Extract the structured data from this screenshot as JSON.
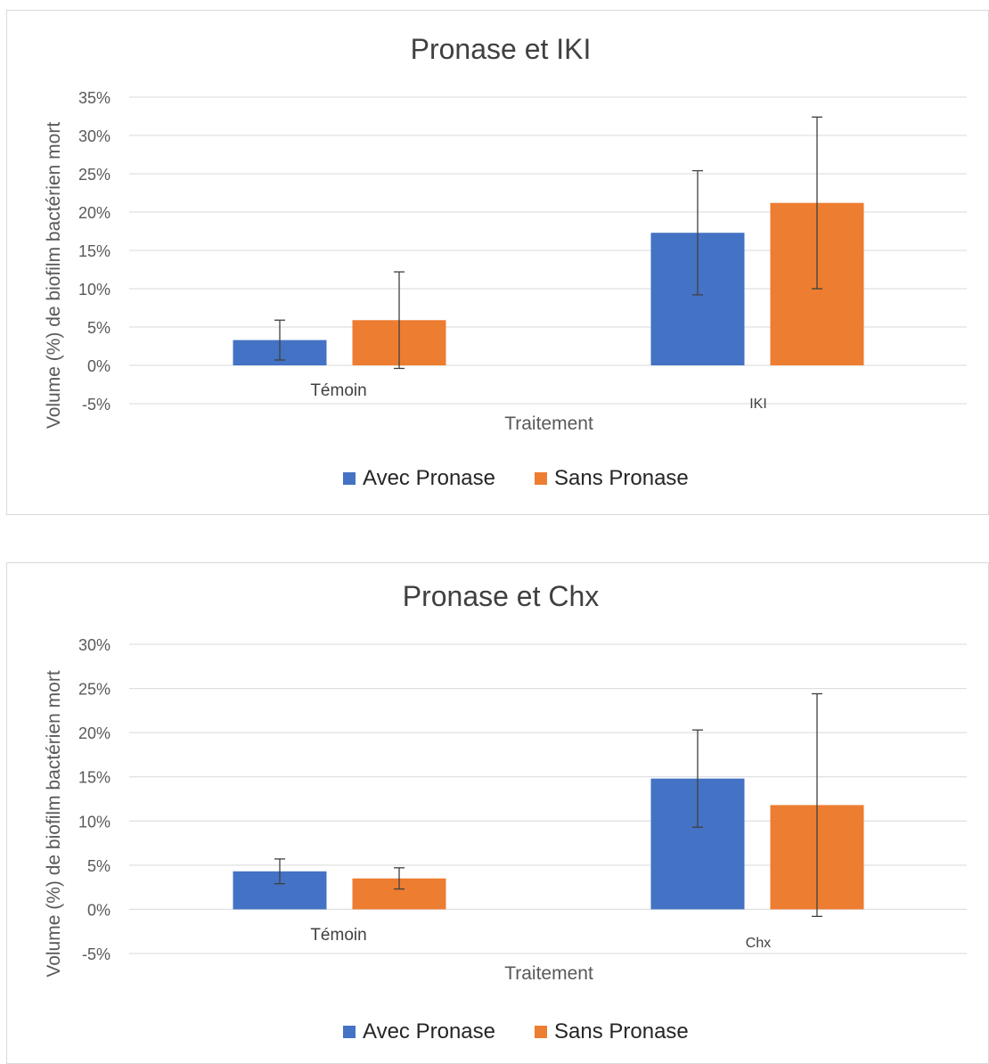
{
  "colors": {
    "series_1": "#4472c4",
    "series_2": "#ed7d31"
  },
  "chart_data": [
    {
      "type": "bar",
      "title": "Pronase et IKI",
      "xlabel": "Traitement",
      "ylabel": "Volume (%) de biofilm bactérien mort",
      "categories": [
        "Témoin",
        "IKI"
      ],
      "ylim": [
        -0.05,
        0.35
      ],
      "ytick_values": [
        -0.05,
        0,
        0.05,
        0.1,
        0.15,
        0.2,
        0.25,
        0.3,
        0.35
      ],
      "ytick_labels": [
        "-5%",
        "0%",
        "5%",
        "10%",
        "15%",
        "20%",
        "25%",
        "30%",
        "35%"
      ],
      "grid": true,
      "legend_position": "bottom",
      "series": [
        {
          "name": "Avec Pronase",
          "color": "#4472c4",
          "values": [
            0.033,
            0.173
          ],
          "error": [
            0.026,
            0.081
          ]
        },
        {
          "name": "Sans Pronase",
          "color": "#ed7d31",
          "values": [
            0.059,
            0.212
          ],
          "error": [
            0.063,
            0.112
          ]
        }
      ]
    },
    {
      "type": "bar",
      "title": "Pronase et Chx",
      "xlabel": "Traitement",
      "ylabel": "Volume (%) de biofilm bactérien mort",
      "categories": [
        "Témoin",
        "Chx"
      ],
      "ylim": [
        -0.05,
        0.3
      ],
      "ytick_values": [
        -0.05,
        0,
        0.05,
        0.1,
        0.15,
        0.2,
        0.25,
        0.3
      ],
      "ytick_labels": [
        "-5%",
        "0%",
        "5%",
        "10%",
        "15%",
        "20%",
        "25%",
        "30%"
      ],
      "grid": true,
      "legend_position": "bottom",
      "series": [
        {
          "name": "Avec Pronase",
          "color": "#4472c4",
          "values": [
            0.043,
            0.148
          ],
          "error": [
            0.014,
            0.055
          ]
        },
        {
          "name": "Sans Pronase",
          "color": "#ed7d31",
          "values": [
            0.035,
            0.118
          ],
          "error": [
            0.012,
            0.126
          ]
        }
      ]
    }
  ]
}
